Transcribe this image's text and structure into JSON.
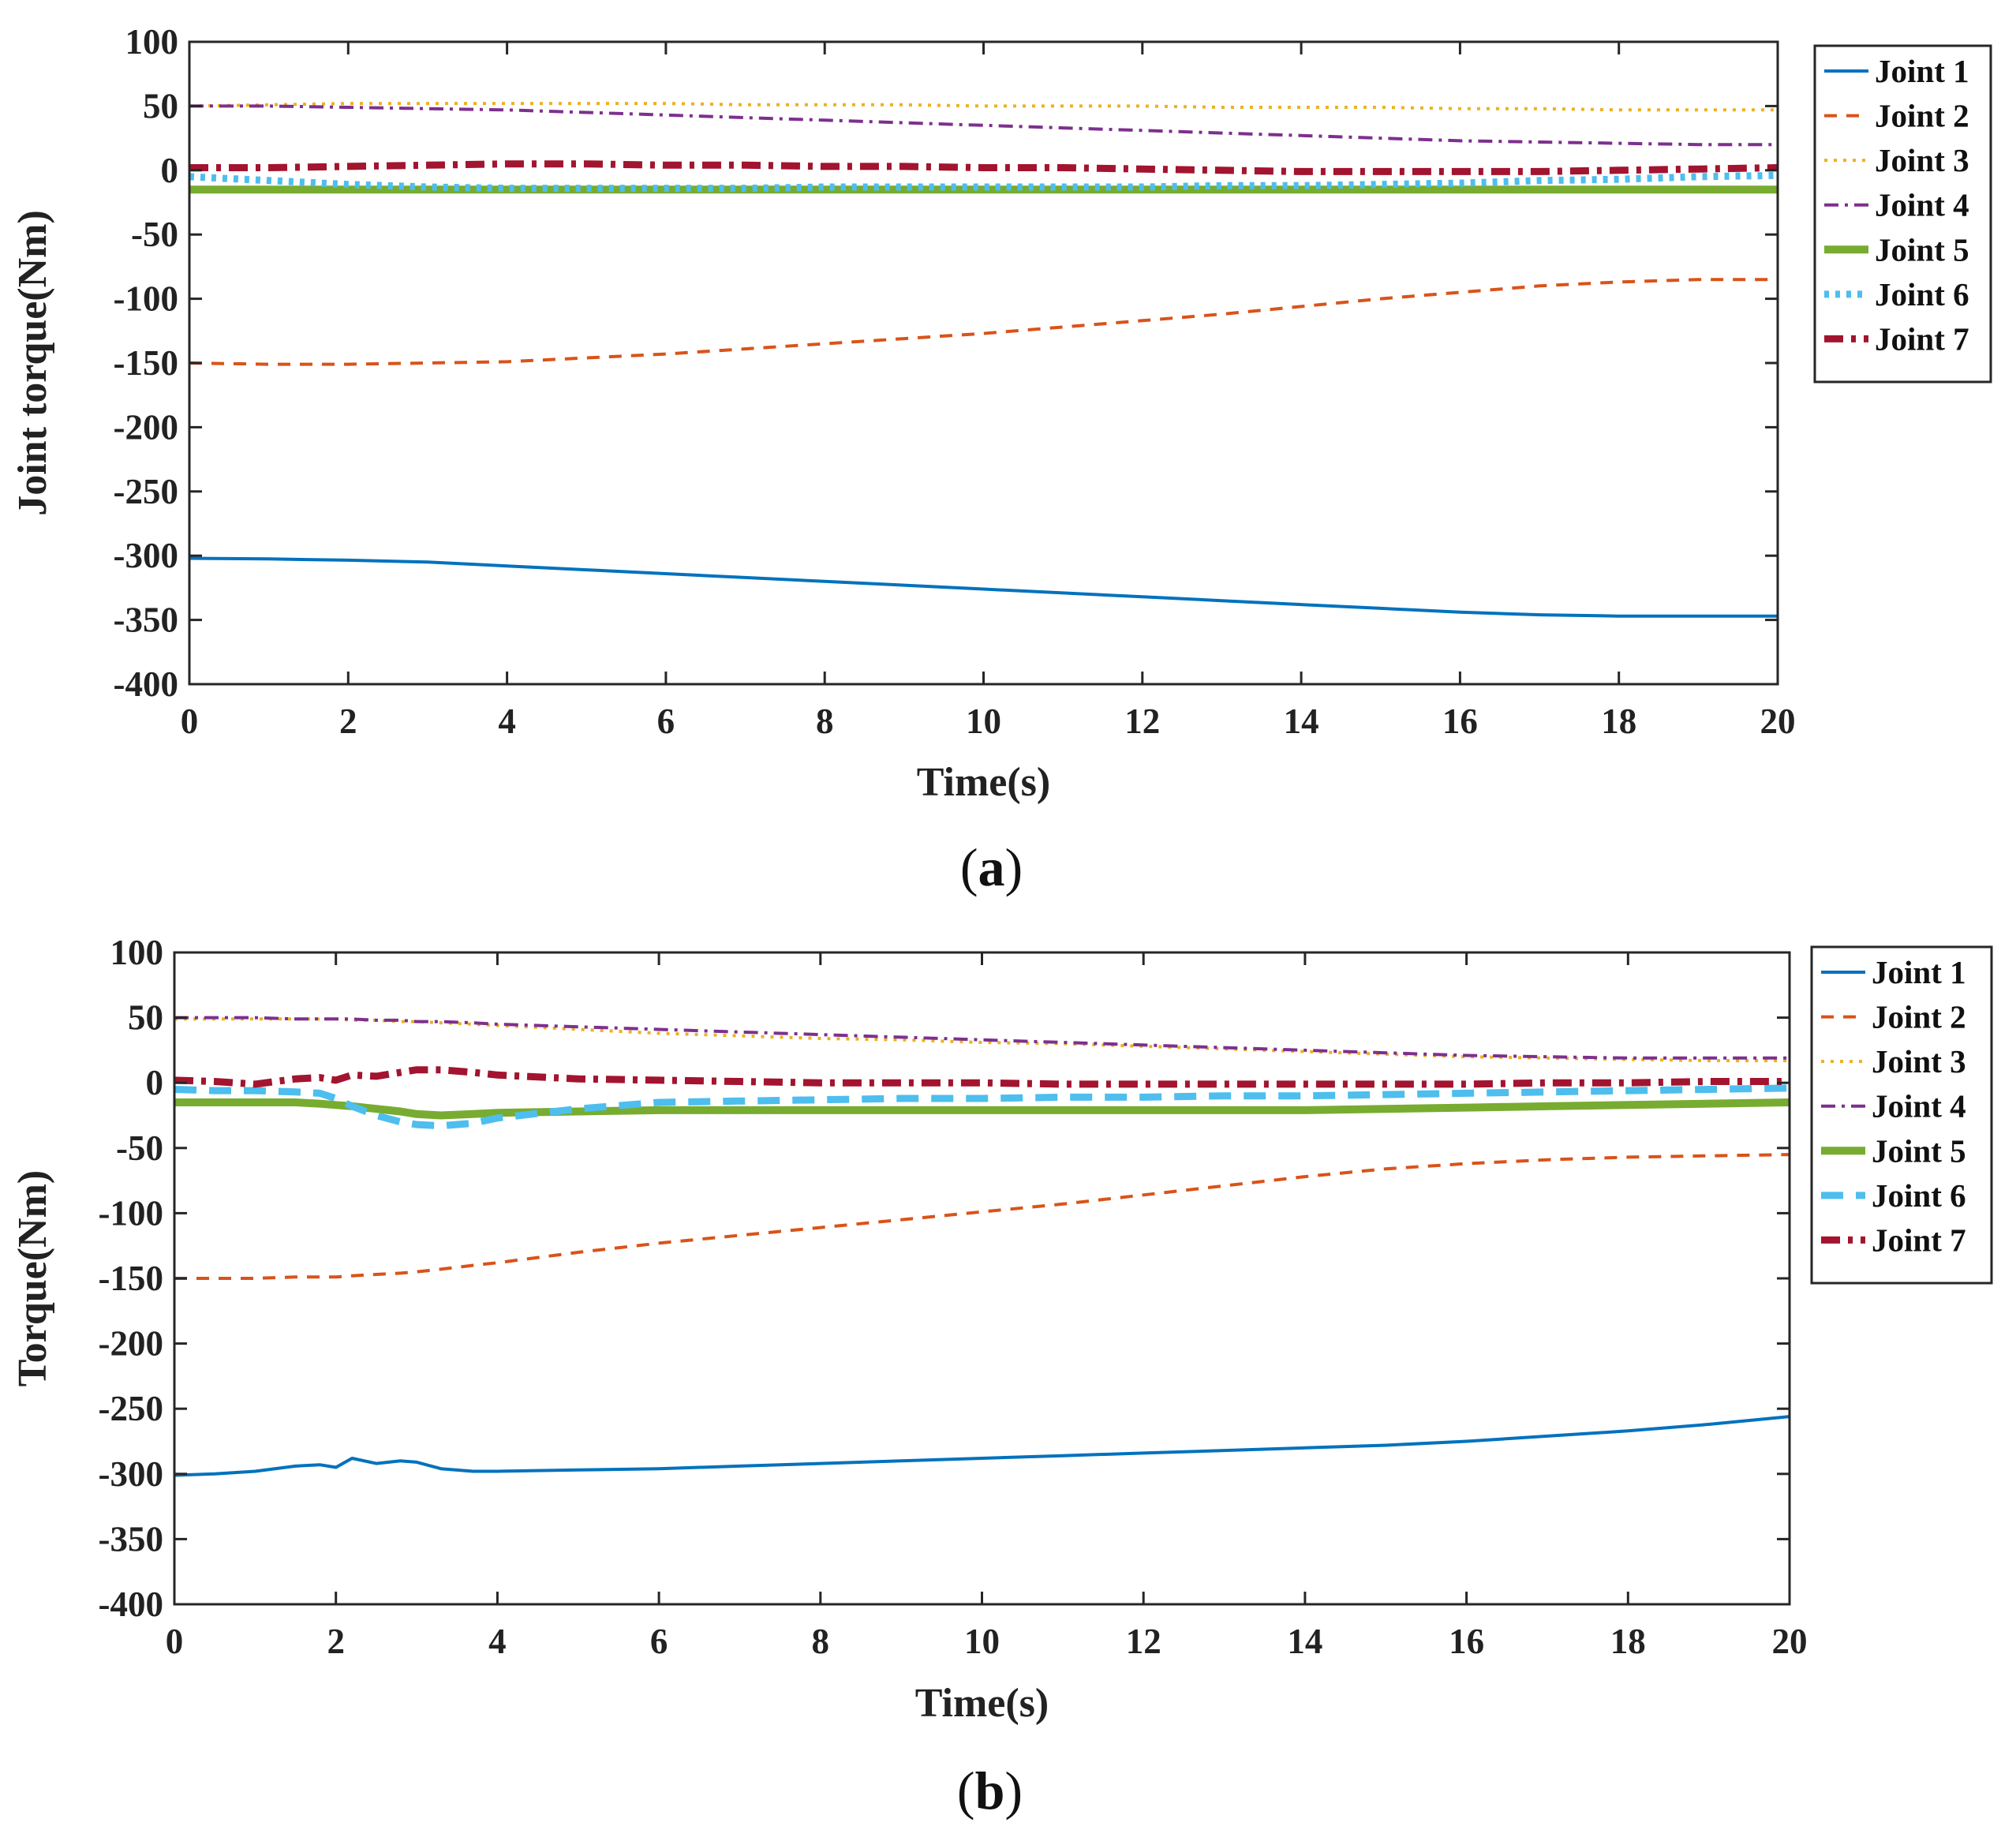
{
  "chart_data": [
    {
      "type": "line",
      "panel": "a",
      "caption_letter": "a",
      "title": "",
      "xlabel": "Time(s)",
      "ylabel": "Joint torque(Nm)",
      "xlim": [
        0,
        20
      ],
      "ylim": [
        -400,
        100
      ],
      "xticks": [
        "0",
        "2",
        "4",
        "6",
        "8",
        "10",
        "12",
        "14",
        "16",
        "18",
        "20"
      ],
      "yticks": [
        "100",
        "50",
        "0",
        "-50",
        "-100",
        "-150",
        "-200",
        "-250",
        "-300",
        "-350",
        "-400"
      ],
      "grid": false,
      "legend": "outside-top-right",
      "x": [
        0,
        1,
        2,
        3,
        4,
        5,
        6,
        7,
        8,
        9,
        10,
        11,
        12,
        13,
        14,
        15,
        16,
        17,
        18,
        19,
        20
      ],
      "series": [
        {
          "name": "Joint 1",
          "color": "#0072BD",
          "dash": "solid",
          "values": [
            -302,
            -302.5,
            -303.5,
            -305,
            -308,
            -311,
            -314,
            -317,
            -320,
            -323,
            -326,
            -329,
            -332,
            -335,
            -338,
            -341,
            -344,
            -346,
            -347,
            -347,
            -347
          ]
        },
        {
          "name": "Joint 2",
          "color": "#D95319",
          "dash": "dash",
          "values": [
            -150,
            -151,
            -151,
            -150,
            -149,
            -146,
            -143,
            -139,
            -135,
            -131,
            -127,
            -122,
            -117,
            -112,
            -106,
            -100,
            -95,
            -90,
            -87,
            -85,
            -85
          ]
        },
        {
          "name": "Joint 3",
          "color": "#EDB120",
          "dash": "dot",
          "values": [
            50,
            51,
            52,
            52,
            52,
            52,
            52,
            51,
            51,
            51,
            50,
            50,
            50,
            49,
            49,
            49,
            48,
            48,
            47,
            47,
            47
          ]
        },
        {
          "name": "Joint 4",
          "color": "#7E2F8E",
          "dash": "dashdot",
          "values": [
            50,
            50,
            49,
            48,
            47,
            45,
            43,
            41,
            39,
            37,
            35,
            33,
            31,
            29,
            27,
            25,
            23,
            22,
            21,
            20,
            20
          ]
        },
        {
          "name": "Joint 5",
          "color": "#77AC30",
          "dash": "solid-thick",
          "values": [
            -15,
            -15,
            -15,
            -15,
            -15,
            -15,
            -15,
            -15,
            -15,
            -15,
            -15,
            -15,
            -15,
            -15,
            -15,
            -15,
            -15,
            -15,
            -15,
            -15,
            -15
          ]
        },
        {
          "name": "Joint 6",
          "color": "#4DBEEE",
          "dash": "dot-thick",
          "values": [
            -5,
            -8,
            -11,
            -13,
            -14,
            -14,
            -14,
            -14,
            -13,
            -13,
            -13,
            -13,
            -13,
            -12,
            -12,
            -11,
            -10,
            -8,
            -7,
            -5,
            -4
          ]
        },
        {
          "name": "Joint 7",
          "color": "#A2142F",
          "dash": "dashdot-thick",
          "values": [
            2,
            2,
            3,
            4,
            5,
            5,
            4,
            4,
            3,
            3,
            2,
            2,
            1,
            0,
            -1,
            -1,
            -1,
            -1,
            0,
            1,
            2
          ]
        }
      ]
    },
    {
      "type": "line",
      "panel": "b",
      "caption_letter": "b",
      "title": "",
      "xlabel": "Time(s)",
      "ylabel": "Torque(Nm)",
      "xlim": [
        0,
        20
      ],
      "ylim": [
        -400,
        100
      ],
      "xticks": [
        "0",
        "2",
        "4",
        "6",
        "8",
        "10",
        "12",
        "14",
        "16",
        "18",
        "20"
      ],
      "yticks": [
        "100",
        "50",
        "0",
        "-50",
        "-100",
        "-150",
        "-200",
        "-250",
        "-300",
        "-350",
        "-400"
      ],
      "grid": false,
      "legend": "outside-top-right",
      "x": [
        0,
        0.5,
        1,
        1.5,
        1.8,
        2,
        2.2,
        2.5,
        2.8,
        3,
        3.3,
        3.7,
        4,
        5,
        6,
        7,
        8,
        9,
        10,
        11,
        12,
        13,
        14,
        15,
        16,
        17,
        18,
        19,
        20
      ],
      "series": [
        {
          "name": "Joint 1",
          "color": "#0072BD",
          "dash": "solid",
          "values": [
            -301,
            -300,
            -298,
            -294,
            -293,
            -295,
            -288,
            -292,
            -290,
            -291,
            -296,
            -298,
            -298,
            -297,
            -296,
            -294,
            -292,
            -290,
            -288,
            -286,
            -284,
            -282,
            -280,
            -278,
            -275,
            -271,
            -267,
            -262,
            -256
          ]
        },
        {
          "name": "Joint 2",
          "color": "#D95319",
          "dash": "dash",
          "values": [
            -150,
            -150,
            -150,
            -149,
            -149,
            -149,
            -148,
            -147,
            -146,
            -145,
            -143,
            -140,
            -138,
            -130,
            -123,
            -117,
            -111,
            -105,
            -99,
            -93,
            -86,
            -79,
            -72,
            -66,
            -62,
            -59,
            -57,
            -56,
            -55
          ]
        },
        {
          "name": "Joint 3",
          "color": "#EDB120",
          "dash": "dot",
          "values": [
            49,
            49,
            49,
            49,
            49,
            49,
            48,
            48,
            47,
            47,
            46,
            45,
            44,
            41,
            38,
            36,
            34,
            33,
            31,
            30,
            28,
            26,
            24,
            22,
            20,
            19,
            18,
            17,
            17
          ]
        },
        {
          "name": "Joint 4",
          "color": "#7E2F8E",
          "dash": "dashdot",
          "values": [
            50,
            50,
            50,
            49,
            49,
            49,
            49,
            48,
            48,
            47,
            47,
            46,
            45,
            43,
            41,
            39,
            37,
            35,
            33,
            31,
            29,
            27,
            25,
            23,
            21,
            20,
            19,
            19,
            19
          ]
        },
        {
          "name": "Joint 5",
          "color": "#77AC30",
          "dash": "solid-thick",
          "values": [
            -15,
            -15,
            -15,
            -15,
            -16,
            -17,
            -18,
            -20,
            -22,
            -24,
            -25,
            -24,
            -23,
            -22,
            -21,
            -21,
            -21,
            -21,
            -21,
            -21,
            -21,
            -21,
            -21,
            -20,
            -19,
            -18,
            -17,
            -16,
            -15
          ]
        },
        {
          "name": "Joint 6",
          "color": "#4DBEEE",
          "dash": "dash-thick",
          "values": [
            -5,
            -6,
            -6,
            -7,
            -8,
            -12,
            -18,
            -25,
            -30,
            -32,
            -33,
            -31,
            -27,
            -20,
            -15,
            -14,
            -13,
            -12,
            -12,
            -11,
            -11,
            -10,
            -10,
            -9,
            -8,
            -7,
            -6,
            -5,
            -4
          ]
        },
        {
          "name": "Joint 7",
          "color": "#A2142F",
          "dash": "dashdot-thick",
          "values": [
            2,
            1,
            -1,
            3,
            4,
            2,
            6,
            5,
            8,
            10,
            10,
            8,
            6,
            3,
            2,
            1,
            0,
            0,
            0,
            -1,
            -1,
            -1,
            -1,
            -1,
            -1,
            0,
            0,
            1,
            1
          ]
        }
      ]
    }
  ]
}
